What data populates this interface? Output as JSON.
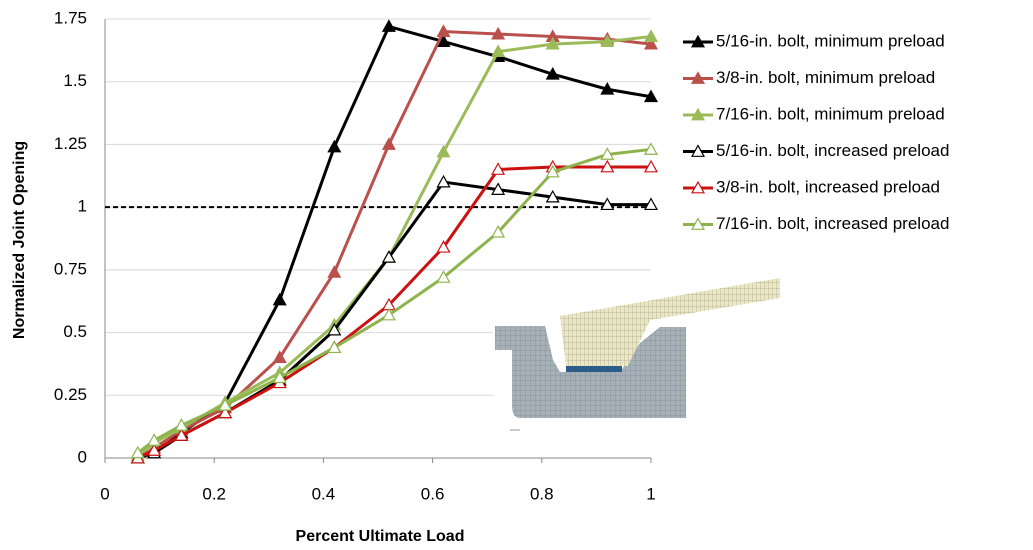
{
  "chart_data": {
    "type": "line",
    "xlabel": "Percent Ultimate Load",
    "ylabel": "Normalized Joint Opening",
    "x": [
      0.06,
      0.09,
      0.14,
      0.22,
      0.32,
      0.42,
      0.52,
      0.62,
      0.72,
      0.82,
      0.92,
      1.0
    ],
    "xlim": [
      0,
      1
    ],
    "xticks": [
      0,
      0.2,
      0.4,
      0.6,
      0.8,
      1
    ],
    "ylim": [
      0,
      1.75
    ],
    "yticks": [
      0,
      0.25,
      0.5,
      0.75,
      1,
      1.25,
      1.5,
      1.75
    ],
    "grid": true,
    "legend": "right",
    "hline": {
      "value": 1,
      "style": "dashed",
      "color": "#000000"
    },
    "series": [
      {
        "name": "5/16-in. bolt, minimum preload",
        "color": "#000000",
        "marker": "filled",
        "values": [
          0,
          0.02,
          0.1,
          0.22,
          0.63,
          1.24,
          1.72,
          1.66,
          1.6,
          1.53,
          1.47,
          1.44
        ]
      },
      {
        "name": "3/8-in. bolt, minimum preload",
        "color": "#b9504b",
        "marker": "filled",
        "values": [
          0,
          0.04,
          0.11,
          0.2,
          0.4,
          0.74,
          1.25,
          1.7,
          1.69,
          1.68,
          1.67,
          1.65
        ]
      },
      {
        "name": "7/16-in. bolt, minimum preload",
        "color": "#9bbb59",
        "marker": "filled",
        "values": [
          0.01,
          0.06,
          0.12,
          0.22,
          0.34,
          0.53,
          0.8,
          1.22,
          1.62,
          1.65,
          1.66,
          1.68
        ]
      },
      {
        "name": "5/16-in. bolt, increased preload",
        "color": "#000000",
        "marker": "open",
        "values": [
          0,
          0.02,
          0.09,
          0.18,
          0.31,
          0.51,
          0.8,
          1.1,
          1.07,
          1.04,
          1.01,
          1.01
        ]
      },
      {
        "name": "3/8-in. bolt, increased preload",
        "color": "#cc1111",
        "marker": "open",
        "values": [
          0,
          0.03,
          0.09,
          0.18,
          0.3,
          0.44,
          0.61,
          0.84,
          1.15,
          1.16,
          1.16,
          1.16
        ]
      },
      {
        "name": "7/16-in. bolt, increased preload",
        "color": "#8db44c",
        "marker": "open",
        "values": [
          0.02,
          0.07,
          0.13,
          0.21,
          0.32,
          0.44,
          0.57,
          0.72,
          0.9,
          1.14,
          1.21,
          1.23
        ]
      }
    ]
  }
}
